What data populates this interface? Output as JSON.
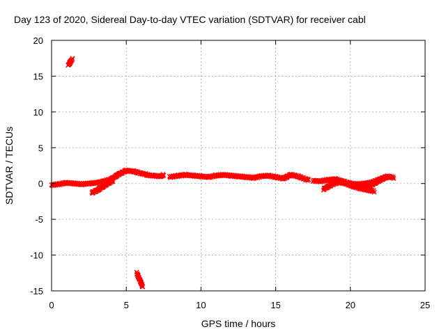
{
  "chart_data": {
    "type": "scatter",
    "title": "Day 123 of 2020, Sidereal Day-to-day VTEC variation (SDTVAR) for receiver cabl",
    "xlabel": "GPS time / hours",
    "ylabel": "SDTVAR / TECUs",
    "xlim": [
      0,
      25
    ],
    "ylim": [
      -15,
      20
    ],
    "xticks": [
      0,
      5,
      10,
      15,
      20,
      25
    ],
    "yticks": [
      -15,
      -10,
      -5,
      0,
      5,
      10,
      15,
      20
    ],
    "grid": true,
    "series_color": "#ff0000",
    "segments": [
      {
        "name": "arc-1",
        "x": [
          1.1,
          1.4
        ],
        "y": [
          16.5,
          17.4
        ]
      },
      {
        "name": "arc-2",
        "x": [
          0.0,
          0.5,
          1.0,
          1.5,
          2.0,
          2.5,
          3.0,
          3.5,
          4.0,
          4.5,
          5.0,
          5.5,
          6.0,
          6.3
        ],
        "y": [
          -0.2,
          -0.1,
          0.1,
          0.0,
          -0.1,
          0.0,
          0.1,
          0.3,
          0.6,
          1.3,
          1.8,
          1.7,
          1.4,
          1.3
        ]
      },
      {
        "name": "arc-3",
        "x": [
          2.7,
          3.1,
          3.6,
          4.1
        ],
        "y": [
          -1.3,
          -0.9,
          -0.2,
          0.4
        ]
      },
      {
        "name": "arc-4",
        "x": [
          6.3,
          6.8,
          7.3,
          7.5
        ],
        "y": [
          1.2,
          1.1,
          1.0,
          1.2
        ]
      },
      {
        "name": "arc-5",
        "x": [
          7.9,
          8.5,
          9.0,
          9.5,
          10.0,
          10.5,
          11.0,
          11.5,
          12.0,
          12.5,
          13.0,
          13.5,
          14.0,
          14.5,
          15.0,
          15.5,
          16.0,
          16.5,
          17.0,
          17.2
        ],
        "y": [
          0.9,
          1.1,
          1.2,
          1.1,
          1.0,
          0.9,
          1.1,
          1.2,
          1.1,
          1.0,
          0.9,
          0.8,
          1.0,
          1.1,
          0.9,
          0.7,
          1.2,
          1.0,
          0.6,
          0.5
        ]
      },
      {
        "name": "arc-6",
        "x": [
          17.5,
          18.0,
          18.5,
          19.0,
          19.5,
          20.0,
          20.5,
          21.0,
          21.5,
          22.0,
          22.5,
          22.9
        ],
        "y": [
          0.4,
          0.3,
          0.5,
          0.6,
          0.3,
          0.0,
          -0.1,
          0.0,
          0.2,
          0.6,
          1.0,
          0.8
        ]
      },
      {
        "name": "arc-7",
        "x": [
          18.2,
          18.7,
          19.2,
          19.7,
          20.2,
          20.7,
          21.2,
          21.6
        ],
        "y": [
          -0.8,
          -0.2,
          0.2,
          0.0,
          -0.4,
          -0.7,
          -0.9,
          -1.1
        ]
      },
      {
        "name": "arc-8",
        "x": [
          21.0,
          21.5,
          22.0,
          22.4
        ],
        "y": [
          -0.6,
          -0.1,
          0.5,
          0.9
        ]
      },
      {
        "name": "arc-9",
        "x": [
          5.7,
          5.85,
          6.0,
          6.1
        ],
        "y": [
          -12.5,
          -13.2,
          -13.9,
          -14.5
        ]
      }
    ]
  }
}
